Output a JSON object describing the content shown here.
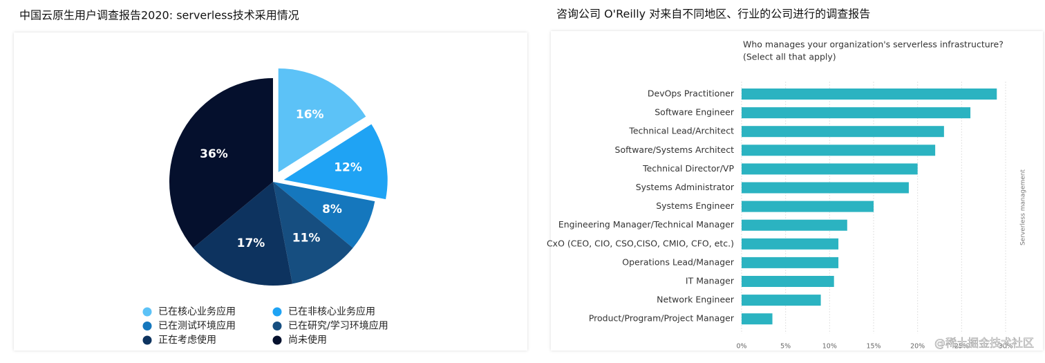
{
  "chart_data": [
    {
      "type": "pie",
      "caption": "中国云原生用户调查报告2020: serverless技术采用情况",
      "categories": [
        "已在核心业务应用",
        "已在非核心业务应用",
        "已在测试环境应用",
        "已在研究/学习环境应用",
        "正在考虑使用",
        "尚未使用"
      ],
      "values": [
        16,
        12,
        8,
        11,
        17,
        36
      ],
      "value_labels": [
        "16%",
        "12%",
        "8%",
        "11%",
        "17%",
        "36%"
      ],
      "colors": [
        "#5cc2f7",
        "#1fa3f4",
        "#1577bd",
        "#164e80",
        "#0d335f",
        "#05102d"
      ],
      "exploded": [
        true,
        true,
        false,
        false,
        false,
        false
      ],
      "legend": "bottom"
    },
    {
      "type": "hbar",
      "caption": "咨询公司 O'Reilly  对来自不同地区、行业的公司进行的调查报告",
      "title": "Who manages your organization's serverless infrastructure?",
      "subtitle": "(Select all that apply)",
      "annotation": "Serverless management",
      "categories": [
        "DevOps Practitioner",
        "Software Engineer",
        "Technical Lead/Architect",
        "Software/Systems Architect",
        "Technical Director/VP",
        "Systems Administrator",
        "Systems Engineer",
        "Engineering Manager/Technical Manager",
        "CxO (CEO, CIO, CSO,CISO, CMIO, CFO, etc.)",
        "Operations Lead/Manager",
        "IT Manager",
        "Network Engineer",
        "Product/Program/Project Manager"
      ],
      "values": [
        29,
        26,
        23,
        22,
        20,
        19,
        15,
        12,
        11,
        11,
        10.5,
        9,
        3.5
      ],
      "color": "#2bb3c1",
      "xlim": [
        0,
        30
      ],
      "xticks": [
        {
          "value": 0,
          "label": "0%"
        },
        {
          "value": 5,
          "label": "5%"
        },
        {
          "value": 10,
          "label": "10%"
        },
        {
          "value": 15,
          "label": "15%"
        },
        {
          "value": 20,
          "label": "20%"
        },
        {
          "value": 25,
          "label": "25%"
        },
        {
          "value": 30,
          "label": "30%"
        }
      ],
      "grid": true
    }
  ],
  "watermark": "@稀土掘金技术社区"
}
